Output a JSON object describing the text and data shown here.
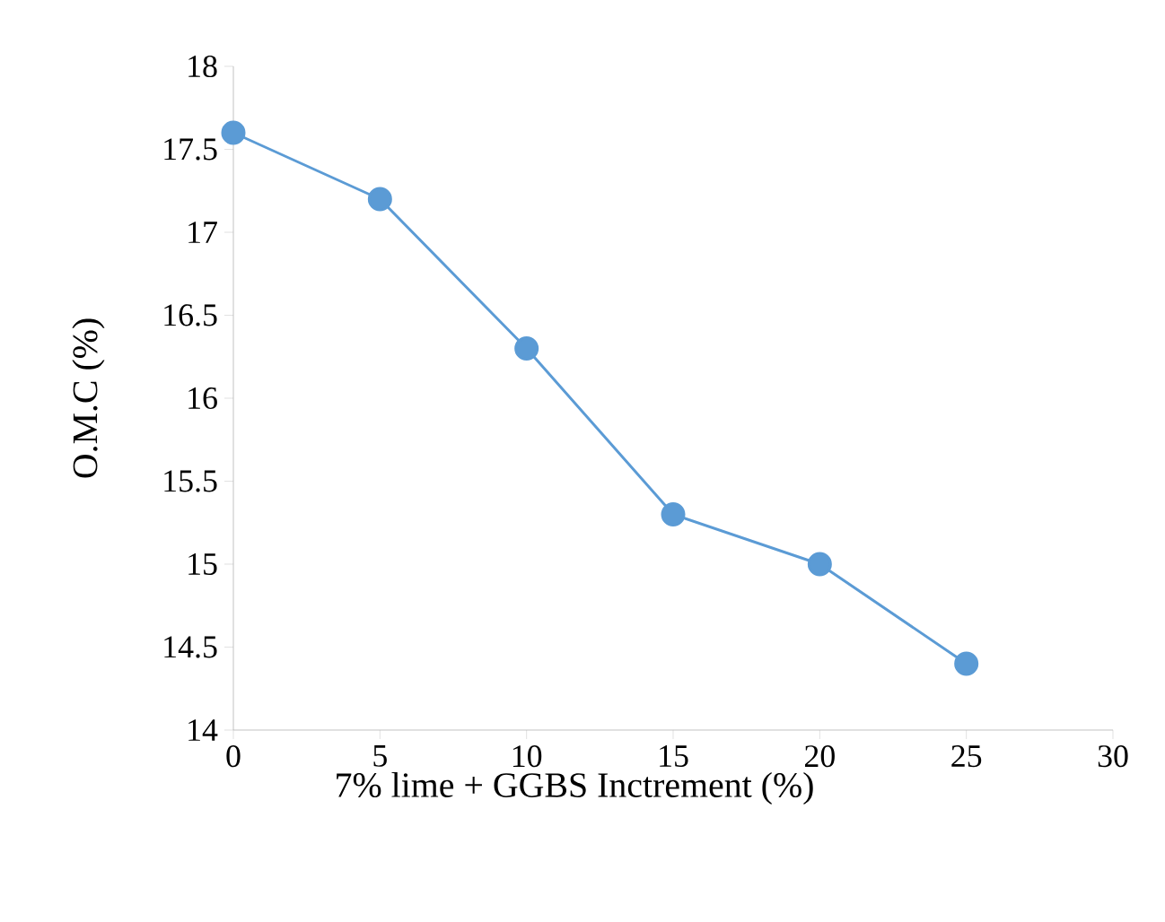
{
  "chart_data": {
    "type": "line",
    "xlabel": "7% lime + GGBS Inctrement (%)",
    "ylabel": "O.M.C (%)",
    "x": [
      0,
      5,
      10,
      15,
      20,
      25
    ],
    "series": [
      {
        "color": "#5b9bd5",
        "values": [
          17.6,
          17.2,
          16.3,
          15.3,
          15.0,
          14.4
        ]
      }
    ],
    "xlim": [
      0,
      30
    ],
    "xticks": [
      0,
      5,
      10,
      15,
      20,
      25,
      30
    ],
    "ylim": [
      14,
      18
    ],
    "yticks": [
      14,
      14.5,
      15,
      15.5,
      16,
      16.5,
      17,
      17.5,
      18
    ],
    "grid": false,
    "marker": "circle",
    "line_style": "solid"
  }
}
